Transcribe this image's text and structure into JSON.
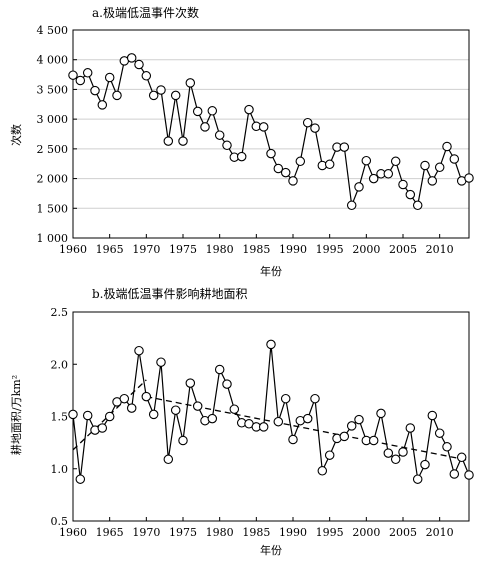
{
  "chart_data": [
    {
      "type": "line",
      "title": "a.极端低温事件次数",
      "xlabel": "年份",
      "ylabel": "次数",
      "xlim": [
        1960,
        2014
      ],
      "ylim": [
        1000,
        4500
      ],
      "xticks": [
        1960,
        1965,
        1970,
        1975,
        1980,
        1985,
        1990,
        1995,
        2000,
        2005,
        2010
      ],
      "yticks": [
        1000,
        1500,
        2000,
        2500,
        3000,
        3500,
        4000,
        4500
      ],
      "ytick_labels": [
        "1 000",
        "1 500",
        "2 000",
        "2 500",
        "3 000",
        "3 500",
        "4 000",
        "4 500"
      ],
      "grid": "horizontal",
      "x": [
        1960,
        1961,
        1962,
        1963,
        1964,
        1965,
        1966,
        1967,
        1968,
        1969,
        1970,
        1971,
        1972,
        1973,
        1974,
        1975,
        1976,
        1977,
        1978,
        1979,
        1980,
        1981,
        1982,
        1983,
        1984,
        1985,
        1986,
        1987,
        1988,
        1989,
        1990,
        1991,
        1992,
        1993,
        1994,
        1995,
        1996,
        1997,
        1998,
        1999,
        2000,
        2001,
        2002,
        2003,
        2004,
        2005,
        2006,
        2007,
        2008,
        2009,
        2010,
        2011,
        2012,
        2013,
        2014
      ],
      "values": [
        3740,
        3650,
        3780,
        3480,
        3240,
        3700,
        3400,
        3980,
        4030,
        3920,
        3730,
        3400,
        3490,
        2630,
        3400,
        2630,
        3610,
        3130,
        2870,
        3140,
        2730,
        2560,
        2360,
        2370,
        3160,
        2880,
        2870,
        2420,
        2170,
        2100,
        1960,
        2290,
        2940,
        2850,
        2220,
        2240,
        2530,
        2530,
        1550,
        1860,
        2300,
        2000,
        2080,
        2080,
        2290,
        1900,
        1730,
        1550,
        2220,
        1960,
        2190,
        2540,
        2330,
        1960,
        2010
      ]
    },
    {
      "type": "line",
      "title": "b.极端低温事件影响耕地面积",
      "xlabel": "年份",
      "ylabel": "耕地面积/万km²",
      "xlim": [
        1960,
        2014
      ],
      "ylim": [
        0.5,
        2.5
      ],
      "xticks": [
        1960,
        1965,
        1970,
        1975,
        1980,
        1985,
        1990,
        1995,
        2000,
        2005,
        2010
      ],
      "yticks": [
        0.5,
        1.0,
        1.5,
        2.0,
        2.5
      ],
      "ytick_labels": [
        "0.5",
        "1.0",
        "1.5",
        "2.0",
        "2.5"
      ],
      "grid": "none",
      "x": [
        1960,
        1961,
        1962,
        1963,
        1964,
        1965,
        1966,
        1967,
        1968,
        1969,
        1970,
        1971,
        1972,
        1973,
        1974,
        1975,
        1976,
        1977,
        1978,
        1979,
        1980,
        1981,
        1982,
        1983,
        1984,
        1985,
        1986,
        1987,
        1988,
        1989,
        1990,
        1991,
        1992,
        1993,
        1994,
        1995,
        1996,
        1997,
        1998,
        1999,
        2000,
        2001,
        2002,
        2003,
        2004,
        2005,
        2006,
        2007,
        2008,
        2009,
        2010,
        2011,
        2012,
        2013,
        2014
      ],
      "values": [
        1.52,
        0.9,
        1.51,
        1.37,
        1.39,
        1.5,
        1.64,
        1.67,
        1.58,
        2.13,
        1.69,
        1.52,
        2.02,
        1.09,
        1.56,
        1.27,
        1.82,
        1.6,
        1.46,
        1.48,
        1.95,
        1.81,
        1.57,
        1.44,
        1.43,
        1.4,
        1.4,
        2.19,
        1.45,
        1.67,
        1.28,
        1.46,
        1.48,
        1.67,
        0.98,
        1.13,
        1.29,
        1.31,
        1.41,
        1.47,
        1.27,
        1.27,
        1.53,
        1.15,
        1.09,
        1.16,
        1.39,
        0.9,
        1.04,
        1.51,
        1.34,
        1.21,
        0.95,
        1.11,
        0.94
      ],
      "trend": [
        {
          "x": [
            1960,
            1970
          ],
          "values": [
            1.18,
            1.85
          ]
        },
        {
          "x": [
            1970,
            2014
          ],
          "values": [
            1.69,
            1.08
          ]
        }
      ]
    }
  ]
}
